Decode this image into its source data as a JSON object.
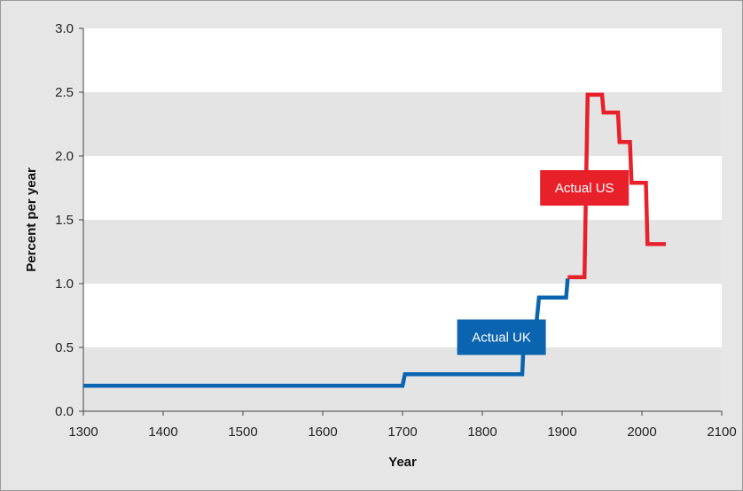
{
  "chart_data": {
    "type": "line",
    "title": "",
    "xlabel": "Year",
    "ylabel": "Percent per year",
    "xlim": [
      1300,
      2100
    ],
    "ylim": [
      0,
      3.0
    ],
    "x_ticks": [
      "1300",
      "1400",
      "1500",
      "1600",
      "1700",
      "1800",
      "1900",
      "2000",
      "2100"
    ],
    "y_ticks": [
      "0.0",
      "0.5",
      "1.0",
      "1.5",
      "2.0",
      "2.5",
      "3.0"
    ],
    "grid": "alternating horizontal bands",
    "series": [
      {
        "name": "Actual UK",
        "color": "#0b64b0",
        "points": [
          [
            1300,
            0.2
          ],
          [
            1700,
            0.2
          ],
          [
            1703,
            0.29
          ],
          [
            1850,
            0.29
          ],
          [
            1853,
            0.7
          ],
          [
            1868,
            0.7
          ],
          [
            1871,
            0.89
          ],
          [
            1905,
            0.89
          ],
          [
            1907,
            1.04
          ]
        ]
      },
      {
        "name": "Actual US",
        "color": "#e8202a",
        "points": [
          [
            1907,
            1.05
          ],
          [
            1928,
            1.05
          ],
          [
            1932,
            2.48
          ],
          [
            1950,
            2.48
          ],
          [
            1952,
            2.34
          ],
          [
            1970,
            2.34
          ],
          [
            1972,
            2.11
          ],
          [
            1985,
            2.11
          ],
          [
            1987,
            1.79
          ],
          [
            2005,
            1.79
          ],
          [
            2007,
            1.31
          ],
          [
            2030,
            1.31
          ]
        ]
      }
    ],
    "callouts": [
      {
        "text": "Actual US",
        "color": "#e8202a",
        "anchor": [
          1928,
          1.75
        ]
      },
      {
        "text": "Actual UK",
        "color": "#0b64b0",
        "anchor": [
          1824,
          0.58
        ]
      }
    ]
  }
}
